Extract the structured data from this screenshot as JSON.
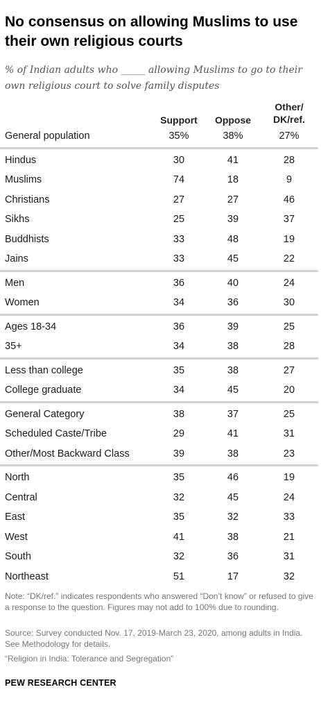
{
  "title": "No consensus on allowing Muslims to use their own religious courts",
  "subtitle": "% of Indian adults who _____ allowing Muslims to go to their own religious court to solve family disputes",
  "chart_data": {
    "type": "table",
    "columns": [
      "Support",
      "Oppose",
      "Other/DK/ref."
    ],
    "column_headers": {
      "support": "Support",
      "oppose": "Oppose",
      "other_line1": "Other/",
      "other_line2": "DK/ref."
    },
    "groups": [
      {
        "rows": [
          {
            "label": "General population",
            "values": [
              "35%",
              "38%",
              "27%"
            ]
          }
        ]
      },
      {
        "rows": [
          {
            "label": "Hindus",
            "values": [
              30,
              41,
              28
            ]
          },
          {
            "label": "Muslims",
            "values": [
              74,
              18,
              9
            ]
          },
          {
            "label": "Christians",
            "values": [
              27,
              27,
              46
            ]
          },
          {
            "label": "Sikhs",
            "values": [
              25,
              39,
              37
            ]
          },
          {
            "label": "Buddhists",
            "values": [
              33,
              48,
              19
            ]
          },
          {
            "label": "Jains",
            "values": [
              33,
              45,
              22
            ]
          }
        ]
      },
      {
        "rows": [
          {
            "label": "Men",
            "values": [
              36,
              40,
              24
            ]
          },
          {
            "label": "Women",
            "values": [
              34,
              36,
              30
            ]
          }
        ]
      },
      {
        "rows": [
          {
            "label": "Ages 18-34",
            "values": [
              36,
              39,
              25
            ]
          },
          {
            "label": "35+",
            "values": [
              34,
              38,
              28
            ]
          }
        ]
      },
      {
        "rows": [
          {
            "label": "Less than college",
            "values": [
              35,
              38,
              27
            ]
          },
          {
            "label": "College graduate",
            "values": [
              34,
              45,
              20
            ]
          }
        ]
      },
      {
        "rows": [
          {
            "label": "General Category",
            "values": [
              38,
              37,
              25
            ]
          },
          {
            "label": "Scheduled Caste/Tribe",
            "values": [
              29,
              41,
              31
            ]
          },
          {
            "label": "Other/Most Backward Class",
            "values": [
              39,
              38,
              23
            ]
          }
        ]
      },
      {
        "rows": [
          {
            "label": "North",
            "values": [
              35,
              46,
              19
            ]
          },
          {
            "label": "Central",
            "values": [
              32,
              45,
              24
            ]
          },
          {
            "label": "East",
            "values": [
              35,
              32,
              33
            ]
          },
          {
            "label": "West",
            "values": [
              41,
              38,
              21
            ]
          },
          {
            "label": "South",
            "values": [
              32,
              36,
              31
            ]
          },
          {
            "label": "Northeast",
            "values": [
              51,
              17,
              32
            ]
          }
        ]
      }
    ]
  },
  "note": "Note: “DK/ref.” indicates respondents who answered “Don’t know” or refused to give a response to the question. Figures may not add to 100% due to rounding.",
  "source": "Source: Survey conducted Nov. 17, 2019-March 23, 2020, among adults in India. See Methodology for details.",
  "report": "“Religion in India: Tolerance and Segregation”",
  "credit": "PEW RESEARCH CENTER"
}
